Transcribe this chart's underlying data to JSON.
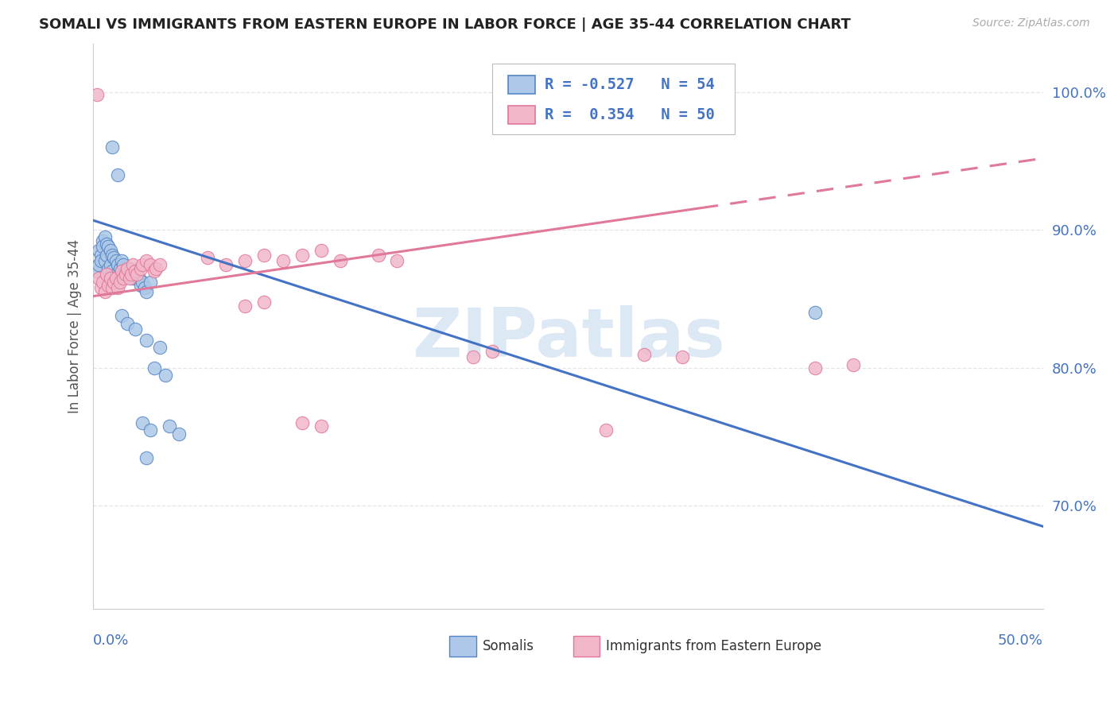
{
  "title": "SOMALI VS IMMIGRANTS FROM EASTERN EUROPE IN LABOR FORCE | AGE 35-44 CORRELATION CHART",
  "source": "Source: ZipAtlas.com",
  "ylabel": "In Labor Force | Age 35-44",
  "xlim": [
    0.0,
    0.5
  ],
  "ylim": [
    0.625,
    1.035
  ],
  "ytick_vals": [
    0.7,
    0.8,
    0.9,
    1.0
  ],
  "somali_R": -0.527,
  "somali_N": 54,
  "eastern_R": 0.354,
  "eastern_N": 50,
  "somali_fill": "#adc8e8",
  "somali_edge": "#5585c5",
  "eastern_fill": "#f2b8ca",
  "eastern_edge": "#e07898",
  "somali_line": "#4472c4",
  "eastern_line": "#e07898",
  "axis_color": "#4472c4",
  "grid_color": "#e5e5e5",
  "title_color": "#222222",
  "source_color": "#aaaaaa",
  "watermark_color": "#dde8f5",
  "bg_color": "#ffffff",
  "somali_points": [
    [
      0.002,
      0.87
    ],
    [
      0.003,
      0.875
    ],
    [
      0.003,
      0.885
    ],
    [
      0.004,
      0.882
    ],
    [
      0.004,
      0.878
    ],
    [
      0.005,
      0.892
    ],
    [
      0.005,
      0.888
    ],
    [
      0.006,
      0.895
    ],
    [
      0.006,
      0.878
    ],
    [
      0.007,
      0.89
    ],
    [
      0.007,
      0.882
    ],
    [
      0.008,
      0.888
    ],
    [
      0.008,
      0.872
    ],
    [
      0.009,
      0.885
    ],
    [
      0.009,
      0.875
    ],
    [
      0.01,
      0.882
    ],
    [
      0.01,
      0.87
    ],
    [
      0.011,
      0.88
    ],
    [
      0.012,
      0.878
    ],
    [
      0.012,
      0.868
    ],
    [
      0.013,
      0.875
    ],
    [
      0.014,
      0.872
    ],
    [
      0.014,
      0.865
    ],
    [
      0.015,
      0.878
    ],
    [
      0.015,
      0.87
    ],
    [
      0.016,
      0.875
    ],
    [
      0.017,
      0.87
    ],
    [
      0.018,
      0.868
    ],
    [
      0.019,
      0.872
    ],
    [
      0.02,
      0.868
    ],
    [
      0.021,
      0.865
    ],
    [
      0.022,
      0.87
    ],
    [
      0.023,
      0.868
    ],
    [
      0.024,
      0.865
    ],
    [
      0.025,
      0.86
    ],
    [
      0.026,
      0.862
    ],
    [
      0.027,
      0.858
    ],
    [
      0.028,
      0.855
    ],
    [
      0.03,
      0.862
    ],
    [
      0.01,
      0.96
    ],
    [
      0.013,
      0.94
    ],
    [
      0.015,
      0.838
    ],
    [
      0.018,
      0.832
    ],
    [
      0.022,
      0.828
    ],
    [
      0.028,
      0.82
    ],
    [
      0.035,
      0.815
    ],
    [
      0.032,
      0.8
    ],
    [
      0.038,
      0.795
    ],
    [
      0.026,
      0.76
    ],
    [
      0.03,
      0.755
    ],
    [
      0.04,
      0.758
    ],
    [
      0.045,
      0.752
    ],
    [
      0.028,
      0.735
    ],
    [
      0.38,
      0.84
    ]
  ],
  "eastern_points": [
    [
      0.003,
      0.865
    ],
    [
      0.004,
      0.858
    ],
    [
      0.005,
      0.862
    ],
    [
      0.006,
      0.855
    ],
    [
      0.007,
      0.868
    ],
    [
      0.008,
      0.86
    ],
    [
      0.009,
      0.865
    ],
    [
      0.01,
      0.858
    ],
    [
      0.011,
      0.862
    ],
    [
      0.012,
      0.865
    ],
    [
      0.013,
      0.858
    ],
    [
      0.014,
      0.862
    ],
    [
      0.015,
      0.87
    ],
    [
      0.016,
      0.865
    ],
    [
      0.017,
      0.868
    ],
    [
      0.018,
      0.872
    ],
    [
      0.019,
      0.865
    ],
    [
      0.02,
      0.868
    ],
    [
      0.021,
      0.875
    ],
    [
      0.022,
      0.87
    ],
    [
      0.023,
      0.868
    ],
    [
      0.025,
      0.872
    ],
    [
      0.026,
      0.875
    ],
    [
      0.028,
      0.878
    ],
    [
      0.03,
      0.875
    ],
    [
      0.032,
      0.87
    ],
    [
      0.033,
      0.872
    ],
    [
      0.035,
      0.875
    ],
    [
      0.002,
      0.998
    ],
    [
      0.06,
      0.88
    ],
    [
      0.07,
      0.875
    ],
    [
      0.08,
      0.878
    ],
    [
      0.09,
      0.882
    ],
    [
      0.1,
      0.878
    ],
    [
      0.11,
      0.882
    ],
    [
      0.12,
      0.885
    ],
    [
      0.13,
      0.878
    ],
    [
      0.15,
      0.882
    ],
    [
      0.16,
      0.878
    ],
    [
      0.08,
      0.845
    ],
    [
      0.09,
      0.848
    ],
    [
      0.2,
      0.808
    ],
    [
      0.21,
      0.812
    ],
    [
      0.29,
      0.81
    ],
    [
      0.31,
      0.808
    ],
    [
      0.11,
      0.76
    ],
    [
      0.12,
      0.758
    ],
    [
      0.38,
      0.8
    ],
    [
      0.4,
      0.802
    ],
    [
      0.27,
      0.755
    ]
  ],
  "somali_trend": [
    0.0,
    0.907,
    0.5,
    0.685
  ],
  "eastern_trend_solid_end": 0.32,
  "eastern_trend": [
    0.0,
    0.852,
    0.5,
    0.952
  ]
}
